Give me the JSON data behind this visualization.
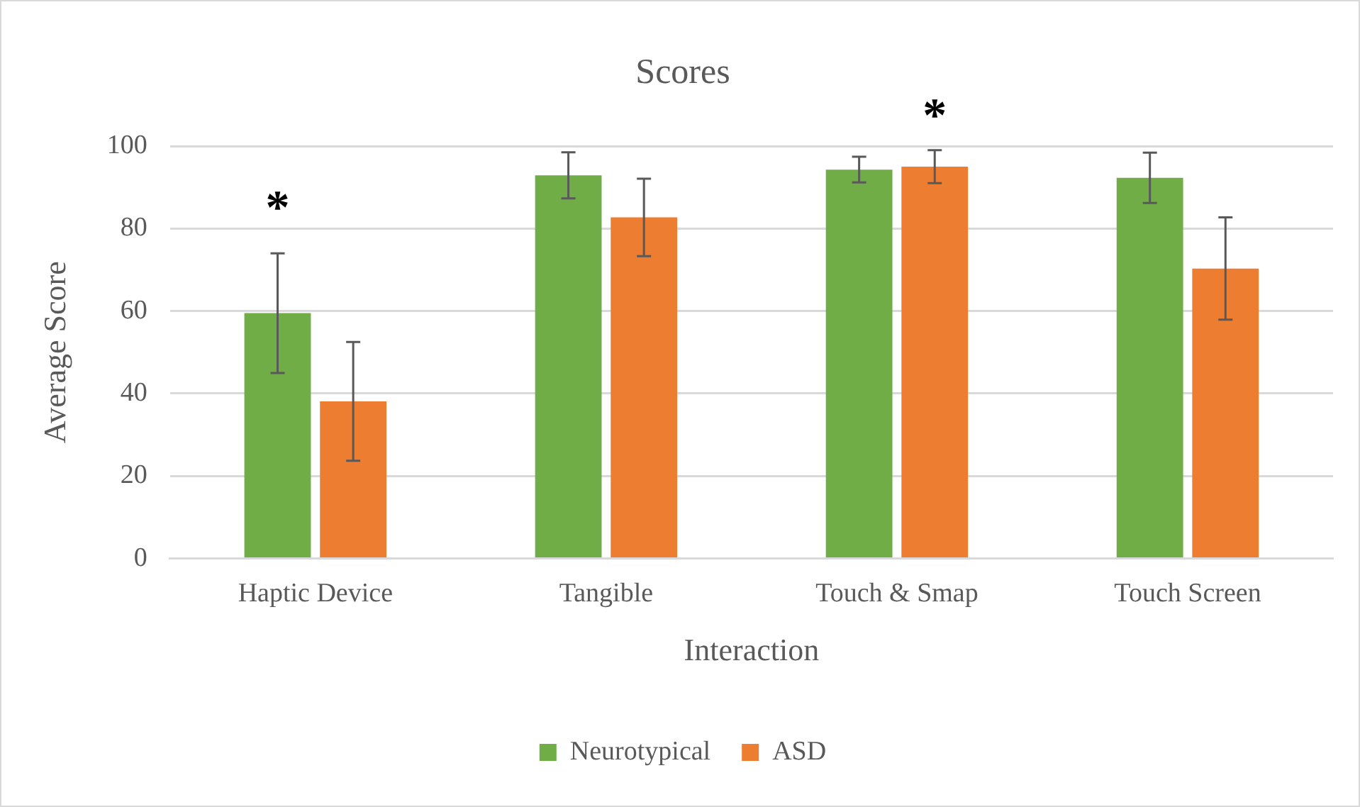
{
  "chart_data": {
    "type": "bar",
    "title": "Scores",
    "xlabel": "Interaction",
    "ylabel": "Average Score",
    "categories": [
      "Haptic Device",
      "Tangible",
      "Touch & Smap",
      "Touch Screen"
    ],
    "series": [
      {
        "name": "Neurotypical",
        "color": "#70ad47",
        "values": [
          59.5,
          92.9,
          94.3,
          92.3
        ],
        "errors": [
          14.5,
          5.6,
          3.1,
          6.1
        ]
      },
      {
        "name": "ASD",
        "color": "#ed7d31",
        "values": [
          38.1,
          82.7,
          95.0,
          70.3
        ],
        "errors": [
          14.4,
          9.4,
          4.0,
          12.4
        ]
      }
    ],
    "ylim": [
      0,
      100
    ],
    "yticks": [
      0,
      20,
      40,
      60,
      80,
      100
    ],
    "grid": "y",
    "legend": "bottom",
    "annotations": [
      "*",
      "*"
    ]
  }
}
